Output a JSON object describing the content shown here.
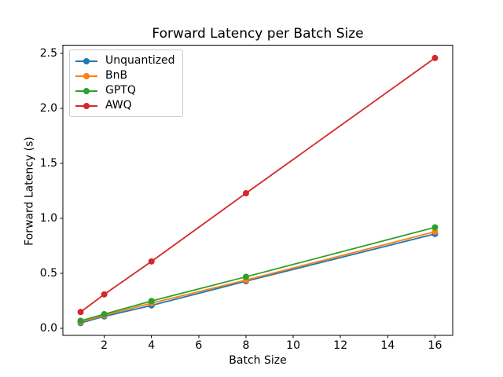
{
  "chart_data": {
    "type": "line",
    "title": "Forward Latency per Batch Size",
    "xlabel": "Batch Size",
    "ylabel": "Forward Latency (s)",
    "x": [
      1,
      2,
      4,
      8,
      16
    ],
    "series": [
      {
        "name": "Unquantized",
        "color": "#1f77b4",
        "values": [
          0.05,
          0.11,
          0.21,
          0.43,
          0.86
        ]
      },
      {
        "name": "BnB",
        "color": "#ff7f0e",
        "values": [
          0.06,
          0.12,
          0.23,
          0.44,
          0.88
        ]
      },
      {
        "name": "GPTQ",
        "color": "#2ca02c",
        "values": [
          0.07,
          0.13,
          0.25,
          0.47,
          0.92
        ]
      },
      {
        "name": "AWQ",
        "color": "#d62728",
        "values": [
          0.15,
          0.31,
          0.61,
          1.23,
          2.46
        ]
      }
    ],
    "xlim": [
      0.25,
      16.75
    ],
    "ylim": [
      -0.064,
      2.576
    ],
    "xticks": [
      2,
      4,
      6,
      8,
      10,
      12,
      14,
      16
    ],
    "yticks": [
      0.0,
      0.5,
      1.0,
      1.5,
      2.0,
      2.5
    ],
    "ytick_decimals": 1,
    "legend_position": "upper left",
    "grid": false,
    "marker": "o",
    "axis_color": "#000000",
    "background": "#ffffff"
  }
}
